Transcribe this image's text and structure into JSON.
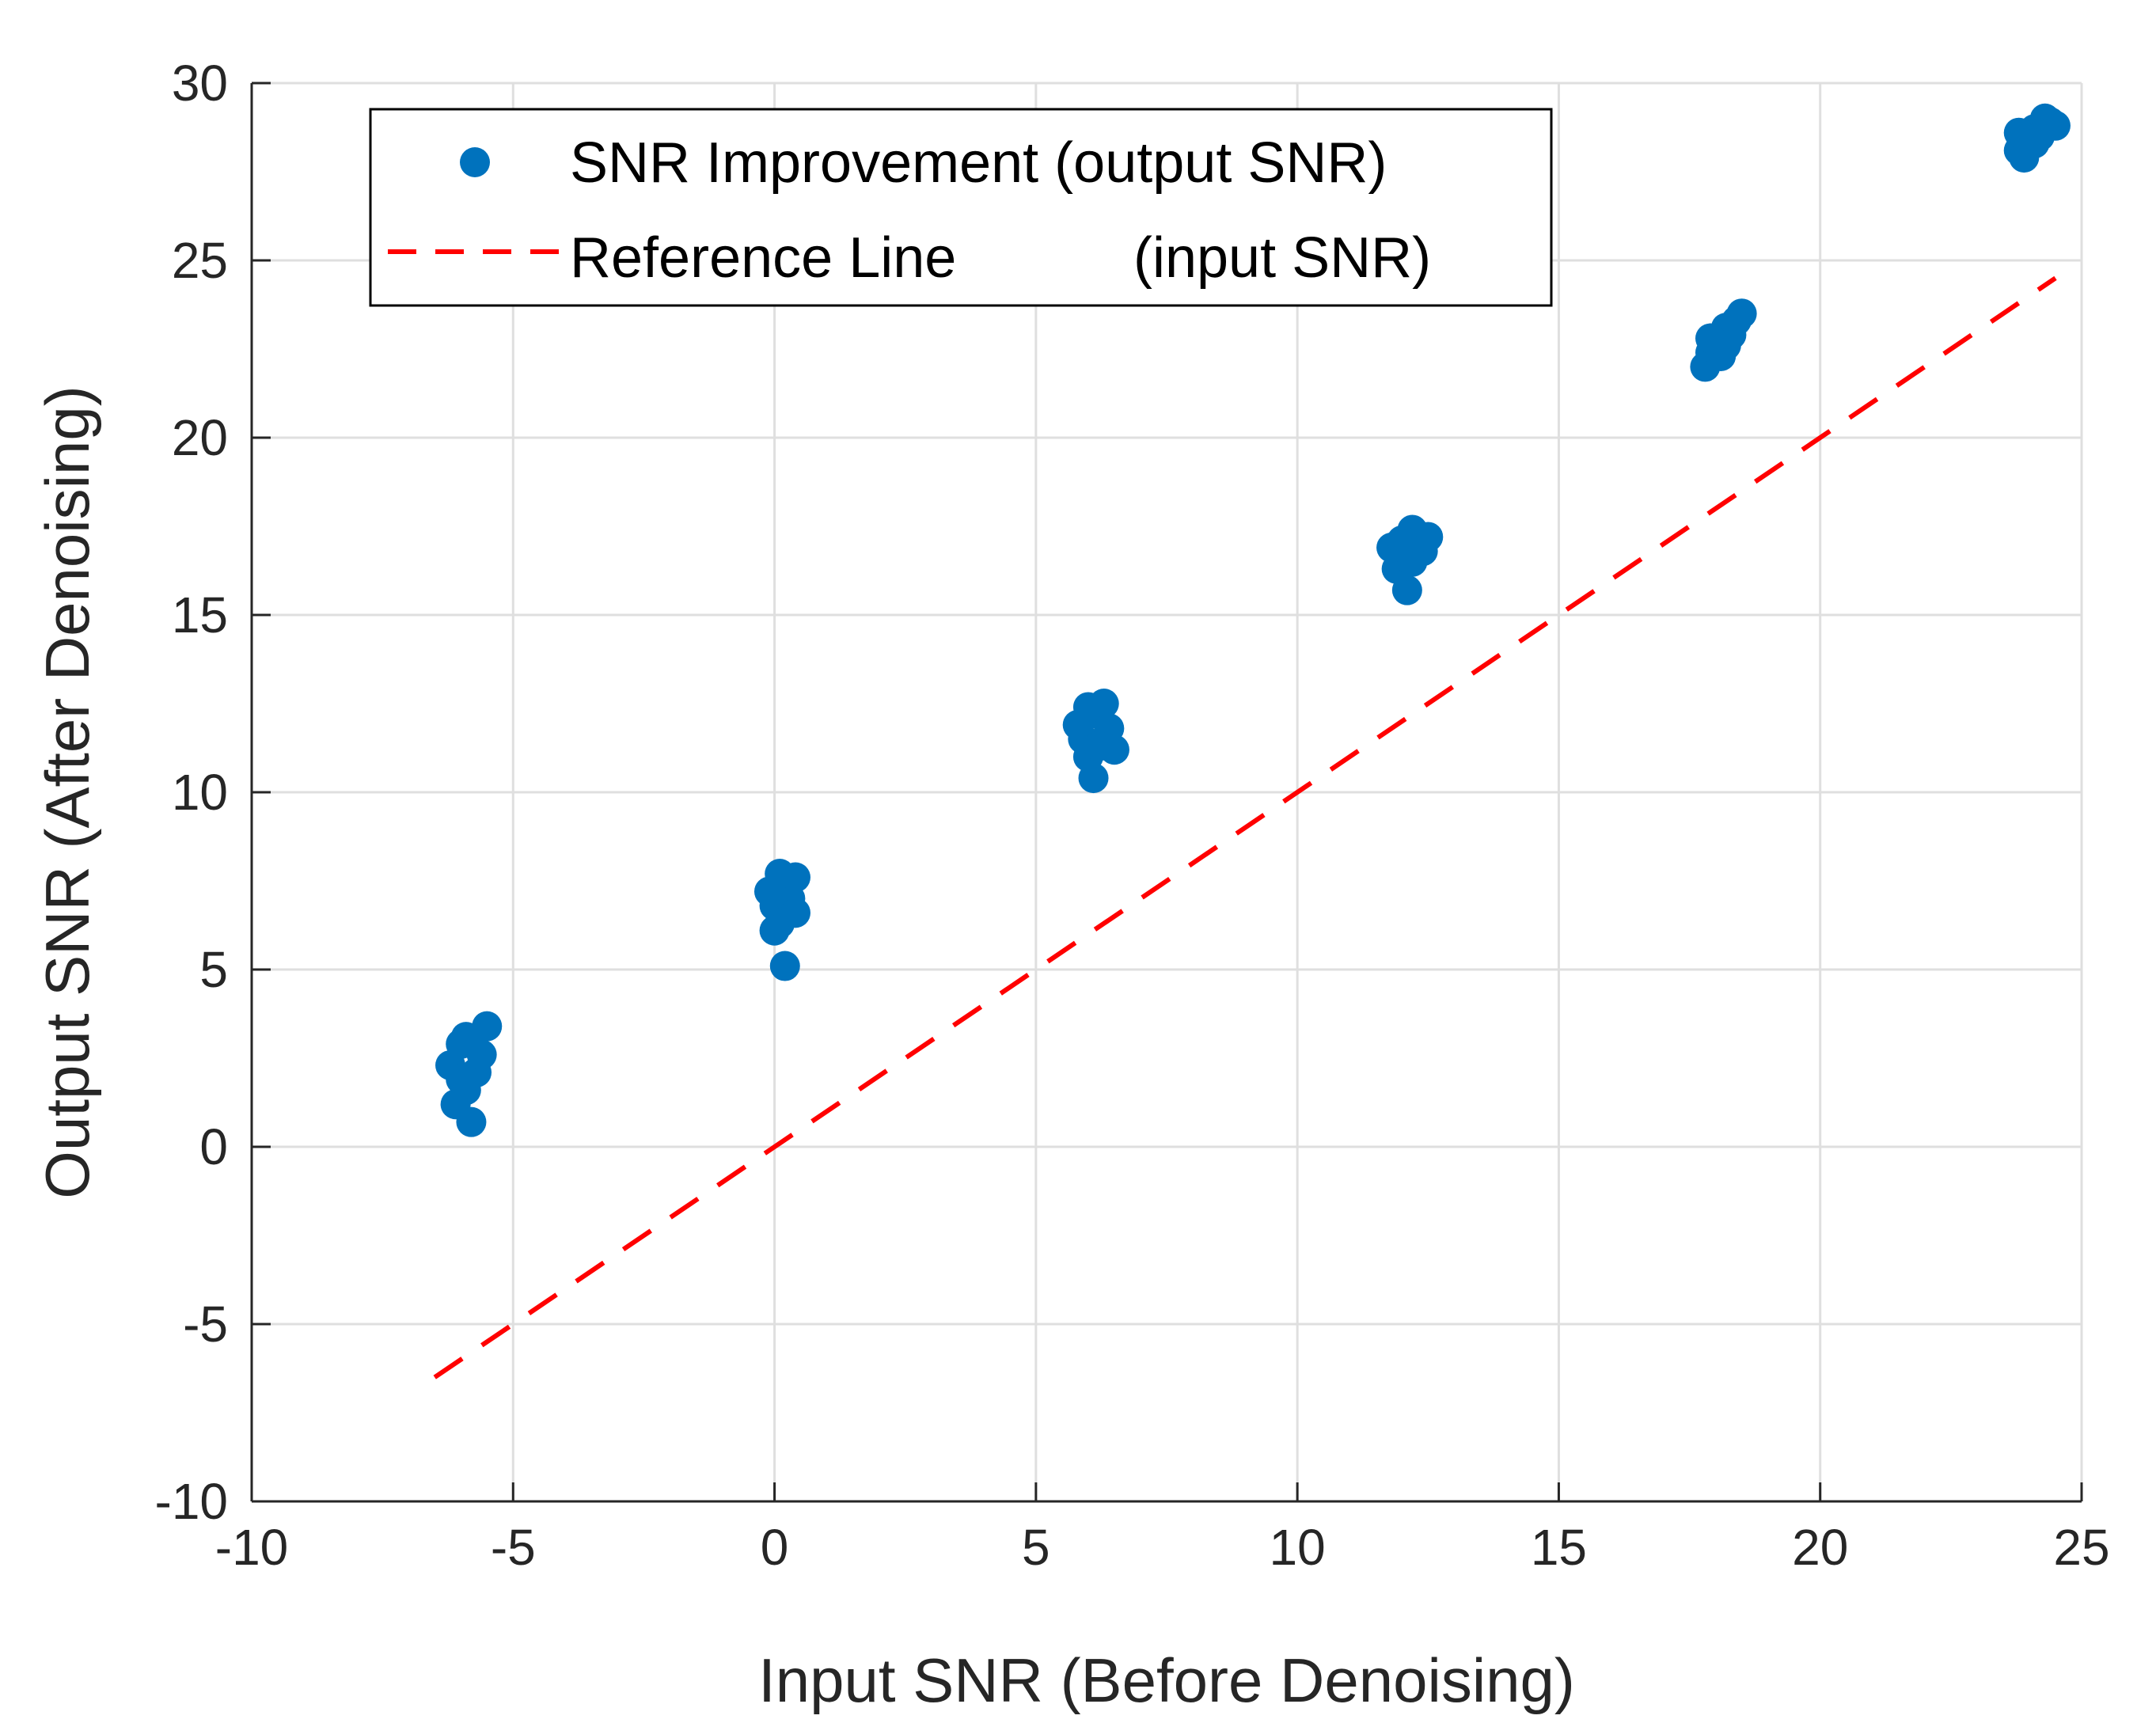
{
  "chart_data": {
    "type": "scatter",
    "title": "",
    "xlabel": "Input SNR (Before Denoising)",
    "ylabel": "Output SNR (After Denoising)",
    "xlim": [
      -10,
      25
    ],
    "ylim": [
      -10,
      30
    ],
    "xticks": [
      -10,
      -5,
      0,
      5,
      10,
      15,
      20,
      25
    ],
    "yticks": [
      -10,
      -5,
      0,
      5,
      10,
      15,
      20,
      25,
      30
    ],
    "xtick_labels": [
      "-10",
      "-5",
      "0",
      "5",
      "10",
      "15",
      "20",
      "25"
    ],
    "ytick_labels": [
      "-10",
      "-5",
      "0",
      "5",
      "10",
      "15",
      "20",
      "25",
      "30"
    ],
    "grid": true,
    "legend_position": "top-left",
    "series": [
      {
        "name": "SNR Improvement (output SNR)",
        "kind": "scatter",
        "color": "#0072BD",
        "points": [
          [
            -6.2,
            2.3
          ],
          [
            -6.0,
            2.9
          ],
          [
            -5.9,
            1.6
          ],
          [
            -5.8,
            0.7
          ],
          [
            -6.1,
            1.2
          ],
          [
            -5.7,
            2.1
          ],
          [
            -5.5,
            3.4
          ],
          [
            -5.6,
            2.6
          ],
          [
            -6.0,
            1.9
          ],
          [
            -5.9,
            3.1
          ],
          [
            0.0,
            6.8
          ],
          [
            0.2,
            7.4
          ],
          [
            0.4,
            7.6
          ],
          [
            0.1,
            6.3
          ],
          [
            0.2,
            5.1
          ],
          [
            0.3,
            7.0
          ],
          [
            -0.1,
            7.2
          ],
          [
            0.4,
            6.6
          ],
          [
            0.0,
            6.1
          ],
          [
            0.1,
            7.7
          ],
          [
            5.9,
            11.5
          ],
          [
            6.2,
            12.2
          ],
          [
            6.3,
            12.5
          ],
          [
            6.1,
            10.4
          ],
          [
            6.0,
            11.0
          ],
          [
            6.4,
            11.8
          ],
          [
            5.8,
            11.9
          ],
          [
            6.2,
            11.3
          ],
          [
            6.5,
            11.2
          ],
          [
            6.0,
            12.4
          ],
          [
            12.0,
            16.6
          ],
          [
            12.2,
            17.4
          ],
          [
            12.3,
            17.0
          ],
          [
            12.1,
            15.7
          ],
          [
            11.9,
            16.3
          ],
          [
            12.4,
            16.8
          ],
          [
            11.8,
            16.9
          ],
          [
            12.2,
            16.5
          ],
          [
            12.5,
            17.2
          ],
          [
            12.0,
            17.1
          ],
          [
            17.9,
            22.4
          ],
          [
            18.2,
            23.1
          ],
          [
            18.5,
            23.5
          ],
          [
            17.8,
            22.0
          ],
          [
            18.0,
            22.7
          ],
          [
            18.3,
            22.9
          ],
          [
            18.1,
            22.3
          ],
          [
            18.4,
            23.3
          ],
          [
            17.9,
            22.8
          ],
          [
            18.2,
            22.6
          ],
          [
            23.8,
            28.1
          ],
          [
            24.1,
            28.7
          ],
          [
            24.3,
            29.0
          ],
          [
            24.5,
            28.8
          ],
          [
            24.0,
            28.4
          ],
          [
            23.9,
            27.9
          ],
          [
            24.2,
            28.5
          ],
          [
            24.4,
            28.9
          ],
          [
            24.1,
            28.3
          ],
          [
            23.8,
            28.6
          ]
        ]
      },
      {
        "name": "Reference Line",
        "name_suffix": "(input SNR)",
        "kind": "line",
        "style": "dashed",
        "color": "#FF0000",
        "x": [
          -6.5,
          24.5
        ],
        "y": [
          -6.5,
          24.5
        ]
      }
    ]
  }
}
